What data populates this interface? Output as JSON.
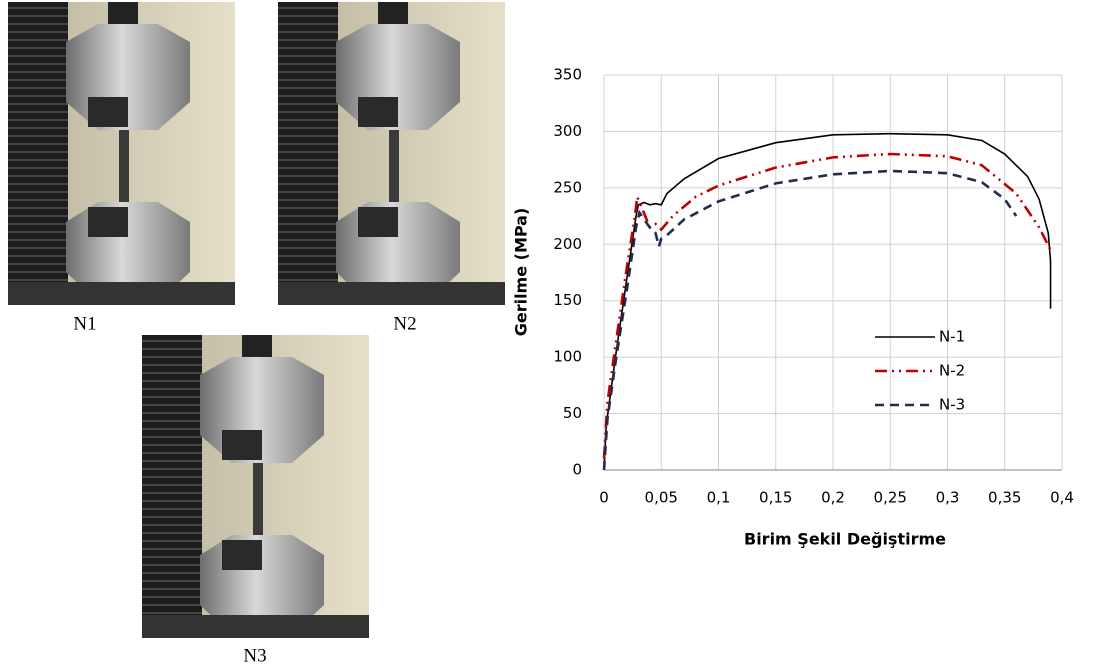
{
  "photos": {
    "captions": [
      "N1",
      "N2",
      "N3"
    ]
  },
  "chart_data": {
    "type": "line",
    "x_label": "Birim Şekil Değiştirme",
    "y_label": "Gerilme (MPa)",
    "xlim": [
      0,
      0.4
    ],
    "xticks": [
      0,
      {
        "value": 0.05,
        "label": "0,05"
      },
      {
        "value": 0.1,
        "label": "0,1"
      },
      {
        "value": 0.15,
        "label": "0,15"
      },
      {
        "value": 0.2,
        "label": "0,2"
      },
      {
        "value": 0.25,
        "label": "0,25"
      },
      {
        "value": 0.3,
        "label": "0,3"
      },
      {
        "value": 0.35,
        "label": "0,35"
      },
      {
        "value": 0.4,
        "label": "0,4"
      }
    ],
    "ylim": [
      0,
      350
    ],
    "yticks": [
      0,
      50,
      100,
      150,
      200,
      250,
      300,
      350
    ],
    "grid": true,
    "legend": "center right",
    "series": [
      {
        "name": "N-1",
        "color": "#000000",
        "line_style": "solid",
        "x": [
          0,
          0.002,
          0.01,
          0.02,
          0.028,
          0.03,
          0.035,
          0.04,
          0.045,
          0.05,
          0.055,
          0.07,
          0.1,
          0.15,
          0.2,
          0.25,
          0.3,
          0.33,
          0.35,
          0.37,
          0.38,
          0.388,
          0.39,
          0.39
        ],
        "values": [
          0,
          40,
          100,
          170,
          225,
          235,
          237,
          235,
          236,
          235,
          245,
          258,
          276,
          290,
          297,
          298,
          297,
          292,
          280,
          260,
          240,
          210,
          185,
          143
        ]
      },
      {
        "name": "N-2",
        "color": "#c00000",
        "line_style": "dash-dot",
        "x": [
          0,
          0.003,
          0.01,
          0.02,
          0.027,
          0.029,
          0.032,
          0.038,
          0.04,
          0.045,
          0.05,
          0.06,
          0.08,
          0.1,
          0.15,
          0.2,
          0.25,
          0.3,
          0.33,
          0.36,
          0.38,
          0.39
        ],
        "values": [
          10,
          60,
          110,
          180,
          225,
          242,
          235,
          220,
          215,
          218,
          213,
          225,
          242,
          252,
          268,
          277,
          280,
          278,
          270,
          245,
          215,
          195
        ]
      },
      {
        "name": "N-3",
        "color": "#1f2d4e",
        "line_style": "dash",
        "x": [
          0,
          0.003,
          0.01,
          0.02,
          0.028,
          0.031,
          0.035,
          0.04,
          0.045,
          0.048,
          0.05,
          0.055,
          0.07,
          0.1,
          0.15,
          0.2,
          0.25,
          0.3,
          0.33,
          0.35,
          0.36
        ],
        "values": [
          0,
          45,
          95,
          160,
          215,
          228,
          222,
          215,
          210,
          198,
          205,
          208,
          222,
          238,
          254,
          262,
          265,
          263,
          255,
          240,
          225
        ]
      }
    ]
  }
}
